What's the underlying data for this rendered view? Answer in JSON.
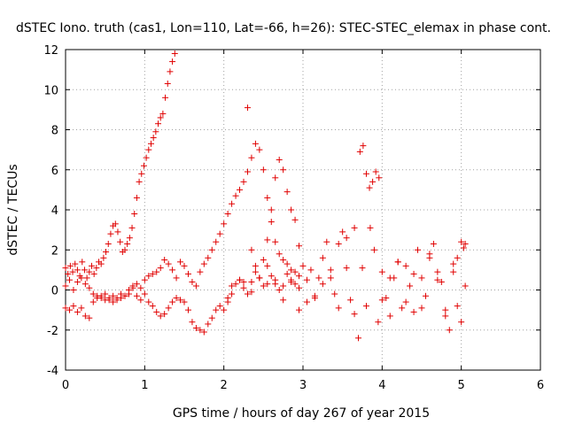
{
  "chart_data": {
    "type": "scatter",
    "title": "dSTEC Iono. truth (cas1, Lon=110, Lat=-66, h=26): STEC-STEC_elemax in phase cont.",
    "xlabel": "GPS time / hours of day 267 of year 2015",
    "ylabel": "dSTEC  / TECUs",
    "xlim": [
      0,
      6
    ],
    "ylim": [
      -4,
      12
    ],
    "xticks": [
      "0",
      "1",
      "2",
      "3",
      "4",
      "5",
      "6"
    ],
    "yticks": [
      "-4",
      "-2",
      "0",
      "2",
      "4",
      "6",
      "8",
      "10",
      "12"
    ],
    "grid": true,
    "marker": "+",
    "point_color": "#e00000",
    "series": [
      {
        "x": [
          0.0,
          0.03,
          0.06,
          0.09,
          0.12,
          0.15,
          0.18,
          0.21,
          0.24,
          0.27,
          0.3,
          0.33,
          0.36,
          0.39,
          0.42,
          0.45,
          0.48,
          0.51,
          0.54,
          0.57,
          0.6,
          0.63,
          0.66,
          0.69,
          0.72,
          0.75,
          0.78,
          0.81,
          0.84,
          0.87,
          0.9,
          0.93,
          0.96,
          0.99,
          1.02,
          1.05,
          1.08,
          1.11,
          1.14,
          1.17,
          1.2,
          1.23,
          1.26,
          1.29,
          1.32,
          1.35,
          1.38
        ],
        "y": [
          1.1,
          0.8,
          1.2,
          0.9,
          1.3,
          1.0,
          0.7,
          1.4,
          1.0,
          0.6,
          0.9,
          1.2,
          0.8,
          1.1,
          1.4,
          1.3,
          1.6,
          1.9,
          2.3,
          2.8,
          3.2,
          3.3,
          2.9,
          2.4,
          1.9,
          2.0,
          2.3,
          2.6,
          3.1,
          3.8,
          4.6,
          5.4,
          5.8,
          6.2,
          6.6,
          7.0,
          7.3,
          7.6,
          7.9,
          8.3,
          8.6,
          8.8,
          9.6,
          10.3,
          10.9,
          11.4,
          11.8
        ]
      },
      {
        "x": [
          0.0,
          0.05,
          0.1,
          0.15,
          0.2,
          0.25,
          0.3,
          0.35,
          0.4,
          0.45,
          0.5,
          0.55,
          0.6,
          0.65,
          0.7,
          0.75,
          0.8,
          0.85,
          0.9,
          0.95,
          1.0,
          1.05,
          1.1,
          1.15,
          1.2,
          1.25,
          1.3,
          1.35,
          1.4,
          1.45,
          1.5,
          1.55,
          1.6,
          1.65,
          1.7,
          1.75,
          1.8,
          1.85,
          1.9,
          1.95,
          2.0,
          2.05,
          2.1,
          2.15,
          2.2,
          2.25,
          2.3,
          2.35,
          2.4,
          2.45,
          2.5,
          2.55,
          2.6,
          2.65,
          2.7,
          2.75,
          2.8,
          2.85,
          2.9,
          2.95
        ],
        "y": [
          -0.9,
          -1.0,
          -0.8,
          -1.1,
          -0.9,
          -1.3,
          -1.4,
          -0.6,
          -0.3,
          -0.4,
          -0.2,
          -0.5,
          -0.3,
          -0.4,
          -0.2,
          -0.3,
          0.0,
          0.2,
          -0.3,
          -0.5,
          -0.2,
          -0.6,
          -0.8,
          -1.1,
          -1.3,
          -1.2,
          -0.9,
          -0.6,
          -0.4,
          -0.5,
          -0.6,
          -1.0,
          -1.6,
          -1.9,
          -2.0,
          -2.1,
          -1.7,
          -1.4,
          -1.0,
          -0.8,
          -1.0,
          -0.6,
          -0.2,
          0.3,
          0.5,
          0.1,
          -0.2,
          0.4,
          0.9,
          0.6,
          0.2,
          0.3,
          0.7,
          0.5,
          0.0,
          0.2,
          0.8,
          0.5,
          0.3,
          0.1
        ]
      },
      {
        "x": [
          0.0,
          0.05,
          0.1,
          0.15,
          0.2,
          0.25,
          0.3,
          0.35,
          0.4,
          0.45,
          0.5,
          0.55,
          0.6,
          0.65,
          0.7,
          0.75,
          0.8,
          0.85,
          0.9,
          0.95,
          1.0,
          1.05,
          1.1,
          1.15,
          1.2,
          1.25,
          1.3,
          1.35,
          1.4,
          1.45,
          1.5,
          1.55,
          1.6,
          1.65,
          1.7,
          1.75,
          1.8,
          1.85,
          1.9,
          1.95,
          2.0,
          2.05,
          2.1,
          2.15,
          2.2,
          2.25,
          2.3,
          2.35,
          2.4,
          2.45,
          2.5,
          2.55,
          2.6,
          2.65,
          2.7,
          2.75,
          2.8,
          2.85,
          2.9,
          2.95
        ],
        "y": [
          0.2,
          0.5,
          0.0,
          0.4,
          0.6,
          0.3,
          0.1,
          -0.2,
          -0.4,
          -0.3,
          -0.5,
          -0.4,
          -0.6,
          -0.5,
          -0.4,
          -0.3,
          -0.2,
          0.1,
          0.3,
          0.1,
          0.5,
          0.7,
          0.8,
          0.9,
          1.1,
          1.5,
          1.3,
          1.0,
          0.6,
          1.4,
          1.2,
          0.8,
          0.4,
          0.2,
          0.9,
          1.3,
          1.6,
          2.0,
          2.4,
          2.8,
          3.3,
          3.8,
          4.3,
          4.7,
          5.0,
          5.4,
          5.9,
          6.6,
          7.3,
          7.0,
          6.0,
          4.6,
          3.4,
          2.4,
          1.8,
          1.5,
          1.3,
          1.0,
          0.9,
          0.7
        ]
      },
      {
        "x": [
          2.3,
          2.35,
          2.4,
          2.45,
          2.5,
          2.55,
          2.6,
          2.65,
          2.7,
          2.75,
          2.8,
          2.85,
          2.9,
          2.95,
          3.0,
          3.05,
          3.1,
          3.15,
          3.2,
          3.25,
          3.3,
          3.35,
          3.4,
          3.45,
          3.5,
          3.55,
          3.6,
          3.65,
          3.7,
          3.75,
          3.8,
          3.85,
          3.9,
          3.95,
          4.0,
          4.05,
          4.1,
          4.15,
          4.2,
          4.25,
          4.3,
          4.35,
          4.4,
          4.45,
          4.5,
          4.55,
          4.6,
          4.65,
          4.7,
          4.75,
          4.8,
          4.85,
          4.9,
          4.95,
          5.0,
          5.05
        ],
        "y": [
          9.1,
          2.0,
          1.2,
          0.6,
          1.5,
          2.5,
          4.0,
          5.6,
          6.5,
          6.0,
          4.9,
          4.0,
          3.5,
          2.2,
          1.2,
          0.5,
          1.0,
          -0.4,
          0.6,
          1.6,
          2.4,
          1.0,
          -0.2,
          2.3,
          2.9,
          2.6,
          -0.5,
          -1.2,
          -2.4,
          1.1,
          -0.8,
          3.1,
          2.0,
          -1.6,
          0.9,
          -0.4,
          -1.3,
          0.6,
          1.4,
          -0.9,
          1.2,
          0.2,
          -1.1,
          2.0,
          0.6,
          -0.3,
          1.6,
          2.3,
          0.9,
          0.4,
          -1.0,
          -2.0,
          1.3,
          -0.8,
          -1.6,
          0.2
        ]
      },
      {
        "x": [
          2.05,
          2.1,
          2.2,
          2.25,
          2.35,
          2.45,
          2.55,
          2.65,
          2.75,
          2.85,
          2.95,
          3.05,
          3.15,
          3.25,
          3.35,
          3.45,
          3.55,
          3.65,
          3.72,
          3.76,
          3.8,
          3.84,
          3.88,
          3.92,
          3.96,
          4.0,
          4.1,
          4.2,
          4.3,
          4.4,
          4.5,
          4.6,
          4.7,
          4.8,
          4.9,
          4.95,
          5.0,
          5.03,
          5.05
        ],
        "y": [
          -0.4,
          0.2,
          0.5,
          0.4,
          -0.1,
          0.6,
          1.2,
          0.3,
          -0.5,
          0.4,
          -1.0,
          -0.6,
          -0.3,
          0.3,
          0.6,
          -0.9,
          1.1,
          3.1,
          6.9,
          7.2,
          5.8,
          5.1,
          5.4,
          5.9,
          5.6,
          -0.5,
          0.6,
          1.4,
          -0.6,
          0.8,
          -0.9,
          1.8,
          0.5,
          -1.3,
          0.9,
          1.6,
          2.4,
          2.1,
          2.3
        ]
      }
    ]
  }
}
